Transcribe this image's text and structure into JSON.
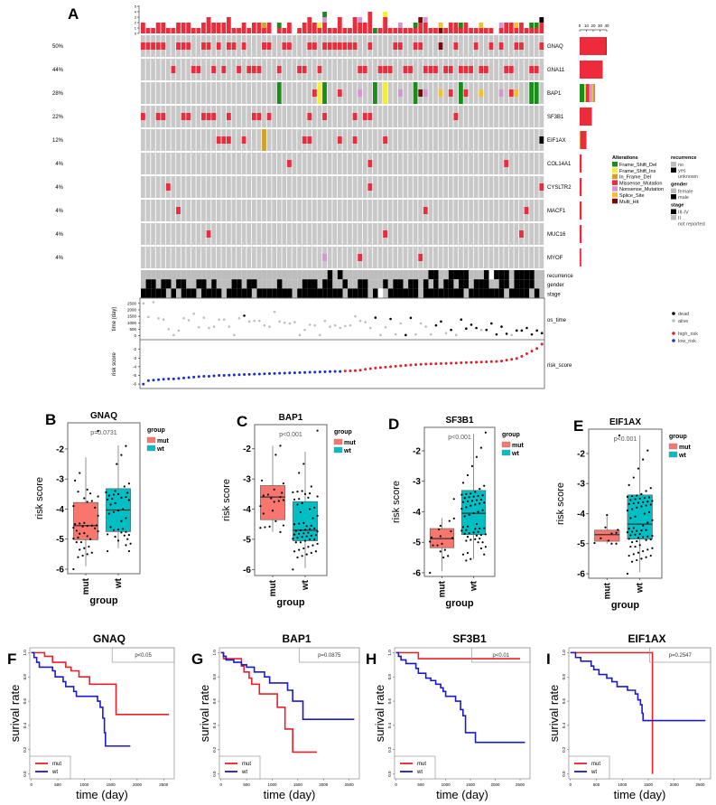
{
  "chart_data": [
    {
      "type": "oncoprint",
      "panel": "A",
      "top_yticks": [
        "0",
        "1",
        "2",
        "3",
        "4",
        "5"
      ],
      "right_xticks": [
        "0",
        "10",
        "20",
        "30",
        "40"
      ],
      "codes": {
        "D": "Frame_Shift_Del",
        "I": "Frame_Shift_Ins",
        "F": "In_Frame_Del",
        "M": "Missense_Mutation",
        "N": "Nonsense_Mutation",
        "S": "Splice_Site",
        "H": "Multi_Hit"
      },
      "colors": {
        "Frame_Shift_Del": "#1a8c1a",
        "Frame_Shift_Ins": "#f2ee3a",
        "In_Frame_Del": "#d1a22a",
        "Missense_Mutation": "#ee2b3b",
        "Nonsense_Mutation": "#d893d2",
        "Splice_Site": "#f3c12e",
        "Multi_Hit": "#7a0a0a",
        "none": "#c8c8c8"
      },
      "genes": [
        {
          "name": "GNAQ",
          "pct": "50%",
          "mutations": "MMMMM..MMM..MM.M.MM.M...MM..MM...MM.MMMMMMM..M....MM..MM...H..M...M..M.M..MM...M"
        },
        {
          "name": "GNA11",
          "pct": "44%",
          "mutations": "......M...MM..M.M..M.MMM...M...MM..M.......MM..MMM..MM..MMM.MM.MMM.MM...MM...MM."
        },
        {
          "name": "BAP1",
          "pct": "28%",
          "mutations": "...........................D......MID..M...N..D.I..N..DHN..S.M.DM..S...N.MS..DD."
        },
        {
          "name": "SF3B1",
          "pct": "22%",
          "mutations": "M..MM...MM..MMM..M....MM.M.......M..M.....M.MM................M.................."
        },
        {
          "name": "EIF1AX",
          "pct": "12%",
          "mutations": "...............MMM..M...F.......MM.....M..M.....M.............................."
        },
        {
          "name": "COL14A1",
          "pct": "4%",
          "mutations": ".............................M...............M..........................M......."
        },
        {
          "name": "CYSLTR2",
          "pct": "4%",
          "mutations": ".....M.......................................M.................................M"
        },
        {
          "name": "MACF1",
          "pct": "4%",
          "mutations": ".......M................................................M...................M..."
        },
        {
          "name": "MUC16",
          "pct": "4%",
          "mutations": ".............M..................................M..........................M...."
        },
        {
          "name": "MYOF",
          "pct": "4%",
          "mutations": "....................................N......M...........M........................"
        }
      ],
      "legend_title": "Alterations",
      "legend_alterations": [
        "Frame_Shift_Del",
        "Frame_Shift_Ins",
        "In_Frame_Del",
        "Missense_Mutation",
        "Nonsense_Mutation",
        "Splice_Site",
        "Multi_Hit"
      ],
      "tracks": [
        {
          "name": "recurrence",
          "values": "0000000000000000000000000000000000000101000000000000000001100111100012111011110"
        },
        {
          "name": "gender",
          "values": "0110110110011010001101100001000011101100100110001011011010101101101110011011110"
        },
        {
          "name": "stage",
          "values": "1111101011101111011111011111110111111111011110120111111011111111011111110111101"
        }
      ],
      "track_legend": [
        {
          "title": "recurrence",
          "items": [
            {
              "label": "no",
              "color": "#bdbdbd"
            },
            {
              "label": "yes",
              "color": "#000000"
            },
            {
              "label": "unknown",
              "color": "#ffffff"
            }
          ]
        },
        {
          "title": "gender",
          "items": [
            {
              "label": "female",
              "color": "#bdbdbd"
            },
            {
              "label": "male",
              "color": "#000000"
            }
          ]
        },
        {
          "title": "stage",
          "items": [
            {
              "label": "III-IV",
              "color": "#000000"
            },
            {
              "label": "II",
              "color": "#bdbdbd"
            },
            {
              "label": "not reported",
              "color": "#ffffff"
            }
          ]
        }
      ]
    },
    {
      "type": "scatter",
      "track_label": "os_time",
      "ylabel": "time (day)",
      "yticks": [
        0,
        500,
        1000,
        1500,
        2000,
        2500
      ],
      "ylim": [
        -100,
        2700
      ],
      "values": [
        2500,
        1450,
        2600,
        1350,
        1250,
        500,
        50,
        400,
        1350,
        1200,
        1700,
        650,
        1400,
        600,
        700,
        1250,
        1250,
        700,
        50,
        1350,
        1550,
        1100,
        1150,
        1150,
        800,
        700,
        1850,
        1100,
        1000,
        950,
        1050,
        50,
        450,
        850,
        800,
        50,
        1150,
        700,
        800,
        600,
        750,
        800,
        1500,
        1150,
        1050,
        600,
        1400,
        50,
        650,
        1300,
        100,
        950,
        50,
        1380,
        100,
        950,
        700,
        100,
        800,
        1100,
        200,
        450,
        50,
        1250,
        550,
        850,
        600,
        450,
        450,
        950,
        100,
        700,
        150,
        50,
        400,
        400,
        600,
        100,
        400,
        200
      ],
      "status": "aaaaaaaaaaaaaaaaaaaadaaaaaaaaaaaaaaaaaaaaaaaaadaadaaddaaaaddadaddddaddddd.dddddd",
      "legend": [
        {
          "label": "dead",
          "color": "#000000",
          "code": "d"
        },
        {
          "label": "alive",
          "color": "#bdbdbd",
          "code": "a"
        }
      ]
    },
    {
      "type": "scatter",
      "track_label": "risk_score",
      "ylabel": "risk score",
      "yticks": [
        -6,
        -5,
        -4,
        -3,
        -2
      ],
      "ylim": [
        -6.2,
        -1.2
      ],
      "values": [
        -6.0,
        -5.6,
        -5.55,
        -5.5,
        -5.45,
        -5.4,
        -5.4,
        -5.35,
        -5.3,
        -5.25,
        -5.2,
        -5.15,
        -5.1,
        -5.1,
        -5.05,
        -5.0,
        -5.0,
        -4.98,
        -4.95,
        -4.92,
        -4.9,
        -4.88,
        -4.86,
        -4.84,
        -4.82,
        -4.8,
        -4.78,
        -4.76,
        -4.74,
        -4.72,
        -4.7,
        -4.68,
        -4.66,
        -4.64,
        -4.62,
        -4.6,
        -4.58,
        -4.56,
        -4.55,
        -4.54,
        -4.5,
        -4.48,
        -4.46,
        -4.4,
        -4.3,
        -4.22,
        -4.15,
        -4.1,
        -4.05,
        -4.0,
        -3.95,
        -3.9,
        -3.85,
        -3.8,
        -3.76,
        -3.73,
        -3.7,
        -3.68,
        -3.66,
        -3.64,
        -3.62,
        -3.6,
        -3.58,
        -3.55,
        -3.52,
        -3.5,
        -3.48,
        -3.46,
        -3.44,
        -3.42,
        -3.4,
        -3.35,
        -3.25,
        -3.15,
        -3.05,
        -2.8,
        -2.5,
        -2.2,
        -1.9,
        -1.4
      ],
      "groups": "llllllllllllllllllllllllllllllllllllllllhhhhhhhhhhhhhhhhhhhhhhhhhhhhhhhhhhhhhhhh",
      "legend": [
        {
          "label": "high_risk",
          "color": "#e0202a",
          "code": "h"
        },
        {
          "label": "low_risk",
          "color": "#1a2ecc",
          "code": "l"
        }
      ]
    },
    {
      "type": "box",
      "panel": "B",
      "title": "GNAQ",
      "gene_index": 0,
      "ylabel": "risk score",
      "xlabel": "group",
      "categories": [
        "mut",
        "wt"
      ],
      "yticks": [
        "-2",
        "-3",
        "-4",
        "-5",
        "-6"
      ],
      "ylim": [
        -6.15,
        -1.13
      ],
      "p_text": "p=0.0731",
      "legend_title": "group",
      "colors": [
        "#f8766d",
        "#00bfc4"
      ],
      "stats": [
        {
          "q1": -5.02,
          "median": -4.55,
          "q3": -3.78,
          "lo": -5.9,
          "hi": -2.28
        },
        {
          "q1": -4.75,
          "median": -4.03,
          "q3": -3.32,
          "lo": -5.3,
          "hi": -1.88
        }
      ]
    },
    {
      "type": "box",
      "panel": "C",
      "title": "BAP1",
      "gene_index": 2,
      "ylabel": "risk score",
      "xlabel": "group",
      "categories": [
        "mut",
        "wt"
      ],
      "yticks": [
        "-2",
        "-3",
        "-4",
        "-5",
        "-6"
      ],
      "ylim": [
        -6.2,
        -1.2
      ],
      "p_text": "p<0.001",
      "legend_title": "group",
      "colors": [
        "#f8766d",
        "#00bfc4"
      ],
      "stats": [
        {
          "q1": -4.35,
          "median": -3.6,
          "q3": -3.22,
          "lo": -4.75,
          "hi": -1.9
        },
        {
          "q1": -5.05,
          "median": -4.7,
          "q3": -3.75,
          "lo": -5.95,
          "hi": -2.1
        }
      ]
    },
    {
      "type": "box",
      "panel": "D",
      "title": "SF3B1",
      "gene_index": 3,
      "ylabel": "risk score",
      "xlabel": "group",
      "categories": [
        "mut",
        "wt"
      ],
      "yticks": [
        "-2",
        "-3",
        "-4",
        "-5",
        "-6"
      ],
      "ylim": [
        -6.12,
        -1.23
      ],
      "p_text": "p<0.001",
      "legend_title": "group",
      "colors": [
        "#f8766d",
        "#00bfc4"
      ],
      "stats": [
        {
          "q1": -5.18,
          "median": -4.88,
          "q3": -4.55,
          "lo": -5.95,
          "hi": -4.2
        },
        {
          "q1": -4.75,
          "median": -4.05,
          "q3": -3.3,
          "lo": -5.55,
          "hi": -1.45
        }
      ]
    },
    {
      "type": "box",
      "panel": "E",
      "title": "EIF1AX",
      "gene_index": 4,
      "ylabel": "risk score",
      "xlabel": "group",
      "categories": [
        "mut",
        "wt"
      ],
      "yticks": [
        "-2",
        "-3",
        "-4",
        "-5",
        "-6"
      ],
      "ylim": [
        -6.15,
        -1.19
      ],
      "p_text": "p<0.001",
      "legend_title": "group",
      "colors": [
        "#f8766d",
        "#00bfc4"
      ],
      "stats": [
        {
          "q1": -4.92,
          "median": -4.7,
          "q3": -4.55,
          "lo": -5.0,
          "hi": -4.1
        },
        {
          "q1": -4.85,
          "median": -4.35,
          "q3": -3.38,
          "lo": -5.95,
          "hi": -1.4
        }
      ]
    },
    {
      "type": "line",
      "panel": "F",
      "title": "GNAQ",
      "xlabel": "time (day)",
      "ylabel": "surival rate",
      "xticks": [
        "0",
        "500",
        "1000",
        "1500",
        "2000",
        "2500"
      ],
      "yticks": [
        "0.0",
        "0.2",
        "0.4",
        "0.6",
        "0.8",
        "1.0"
      ],
      "xlim": [
        -30,
        2700
      ],
      "ylim": [
        -0.04,
        1.04
      ],
      "p_text": "p<0.05",
      "series": [
        {
          "name": "mut",
          "color": "#e8202a",
          "points": [
            [
              0,
              1
            ],
            [
              250,
              0.97
            ],
            [
              400,
              0.92
            ],
            [
              650,
              0.88
            ],
            [
              750,
              0.85
            ],
            [
              900,
              0.8
            ],
            [
              1100,
              0.74
            ],
            [
              1600,
              0.49
            ],
            [
              2600,
              0.49
            ]
          ]
        },
        {
          "name": "wt",
          "color": "#1a1acc",
          "points": [
            [
              0,
              1
            ],
            [
              50,
              0.96
            ],
            [
              100,
              0.92
            ],
            [
              150,
              0.88
            ],
            [
              400,
              0.85
            ],
            [
              450,
              0.8
            ],
            [
              600,
              0.76
            ],
            [
              650,
              0.72
            ],
            [
              800,
              0.68
            ],
            [
              850,
              0.64
            ],
            [
              1250,
              0.6
            ],
            [
              1300,
              0.55
            ],
            [
              1350,
              0.46
            ],
            [
              1380,
              0.34
            ],
            [
              1400,
              0.23
            ],
            [
              1870,
              0.23
            ]
          ]
        }
      ]
    },
    {
      "type": "line",
      "panel": "G",
      "title": "BAP1",
      "xlabel": "time (day)",
      "ylabel": "surival rate",
      "xticks": [
        "0",
        "500",
        "1000",
        "1500",
        "2000",
        "2500"
      ],
      "yticks": [
        "0.0",
        "0.2",
        "0.4",
        "0.6",
        "0.8",
        "1.0"
      ],
      "xlim": [
        -30,
        2700
      ],
      "ylim": [
        -0.04,
        1.04
      ],
      "p_text": "p=0.0875",
      "series": [
        {
          "name": "mut",
          "color": "#e8202a",
          "points": [
            [
              0,
              1
            ],
            [
              50,
              0.95
            ],
            [
              400,
              0.89
            ],
            [
              450,
              0.84
            ],
            [
              550,
              0.79
            ],
            [
              600,
              0.74
            ],
            [
              750,
              0.66
            ],
            [
              1100,
              0.55
            ],
            [
              1250,
              0.37
            ],
            [
              1400,
              0.18
            ],
            [
              1870,
              0.18
            ]
          ]
        },
        {
          "name": "wt",
          "color": "#1a1acc",
          "points": [
            [
              0,
              1
            ],
            [
              50,
              0.97
            ],
            [
              100,
              0.94
            ],
            [
              250,
              0.92
            ],
            [
              400,
              0.9
            ],
            [
              500,
              0.88
            ],
            [
              650,
              0.84
            ],
            [
              850,
              0.8
            ],
            [
              950,
              0.75
            ],
            [
              1300,
              0.69
            ],
            [
              1400,
              0.6
            ],
            [
              1600,
              0.45
            ],
            [
              2600,
              0.45
            ]
          ]
        }
      ]
    },
    {
      "type": "line",
      "panel": "H",
      "title": "SF3B1",
      "xlabel": "time (day)",
      "ylabel": "surival rate",
      "xticks": [
        "0",
        "500",
        "1000",
        "1500",
        "2000",
        "2500"
      ],
      "yticks": [
        "0.0",
        "0.2",
        "0.4",
        "0.6",
        "0.8",
        "1.0"
      ],
      "xlim": [
        -30,
        2700
      ],
      "ylim": [
        -0.04,
        1.04
      ],
      "p_text": "p<0.01",
      "series": [
        {
          "name": "mut",
          "color": "#e8202a",
          "points": [
            [
              0,
              1
            ],
            [
              450,
              0.95
            ],
            [
              2500,
              0.95
            ]
          ]
        },
        {
          "name": "wt",
          "color": "#1a1acc",
          "points": [
            [
              0,
              1
            ],
            [
              50,
              0.97
            ],
            [
              100,
              0.94
            ],
            [
              200,
              0.91
            ],
            [
              400,
              0.87
            ],
            [
              450,
              0.83
            ],
            [
              600,
              0.79
            ],
            [
              700,
              0.77
            ],
            [
              800,
              0.74
            ],
            [
              900,
              0.71
            ],
            [
              950,
              0.68
            ],
            [
              1000,
              0.64
            ],
            [
              1200,
              0.6
            ],
            [
              1300,
              0.53
            ],
            [
              1350,
              0.48
            ],
            [
              1400,
              0.34
            ],
            [
              1600,
              0.26
            ],
            [
              2600,
              0.26
            ]
          ]
        }
      ]
    },
    {
      "type": "line",
      "panel": "I",
      "title": "EIF1AX",
      "xlabel": "time (day)",
      "ylabel": "surival rate",
      "xticks": [
        "0",
        "500",
        "1000",
        "1500",
        "2000",
        "2500"
      ],
      "yticks": [
        "0.0",
        "0.2",
        "0.4",
        "0.6",
        "0.8",
        "1.0"
      ],
      "xlim": [
        -30,
        2700
      ],
      "ylim": [
        -0.04,
        1.04
      ],
      "p_text": "p=0.2547",
      "series": [
        {
          "name": "mut",
          "color": "#e8202a",
          "points": [
            [
              0,
              1
            ],
            [
              1580,
              1
            ],
            [
              1580,
              0
            ]
          ]
        },
        {
          "name": "wt",
          "color": "#1a1acc",
          "points": [
            [
              0,
              1
            ],
            [
              100,
              0.96
            ],
            [
              200,
              0.93
            ],
            [
              400,
              0.89
            ],
            [
              450,
              0.86
            ],
            [
              550,
              0.82
            ],
            [
              700,
              0.79
            ],
            [
              800,
              0.76
            ],
            [
              900,
              0.72
            ],
            [
              1100,
              0.69
            ],
            [
              1250,
              0.66
            ],
            [
              1300,
              0.61
            ],
            [
              1350,
              0.57
            ],
            [
              1380,
              0.5
            ],
            [
              1400,
              0.44
            ],
            [
              2600,
              0.44
            ]
          ]
        }
      ]
    }
  ]
}
